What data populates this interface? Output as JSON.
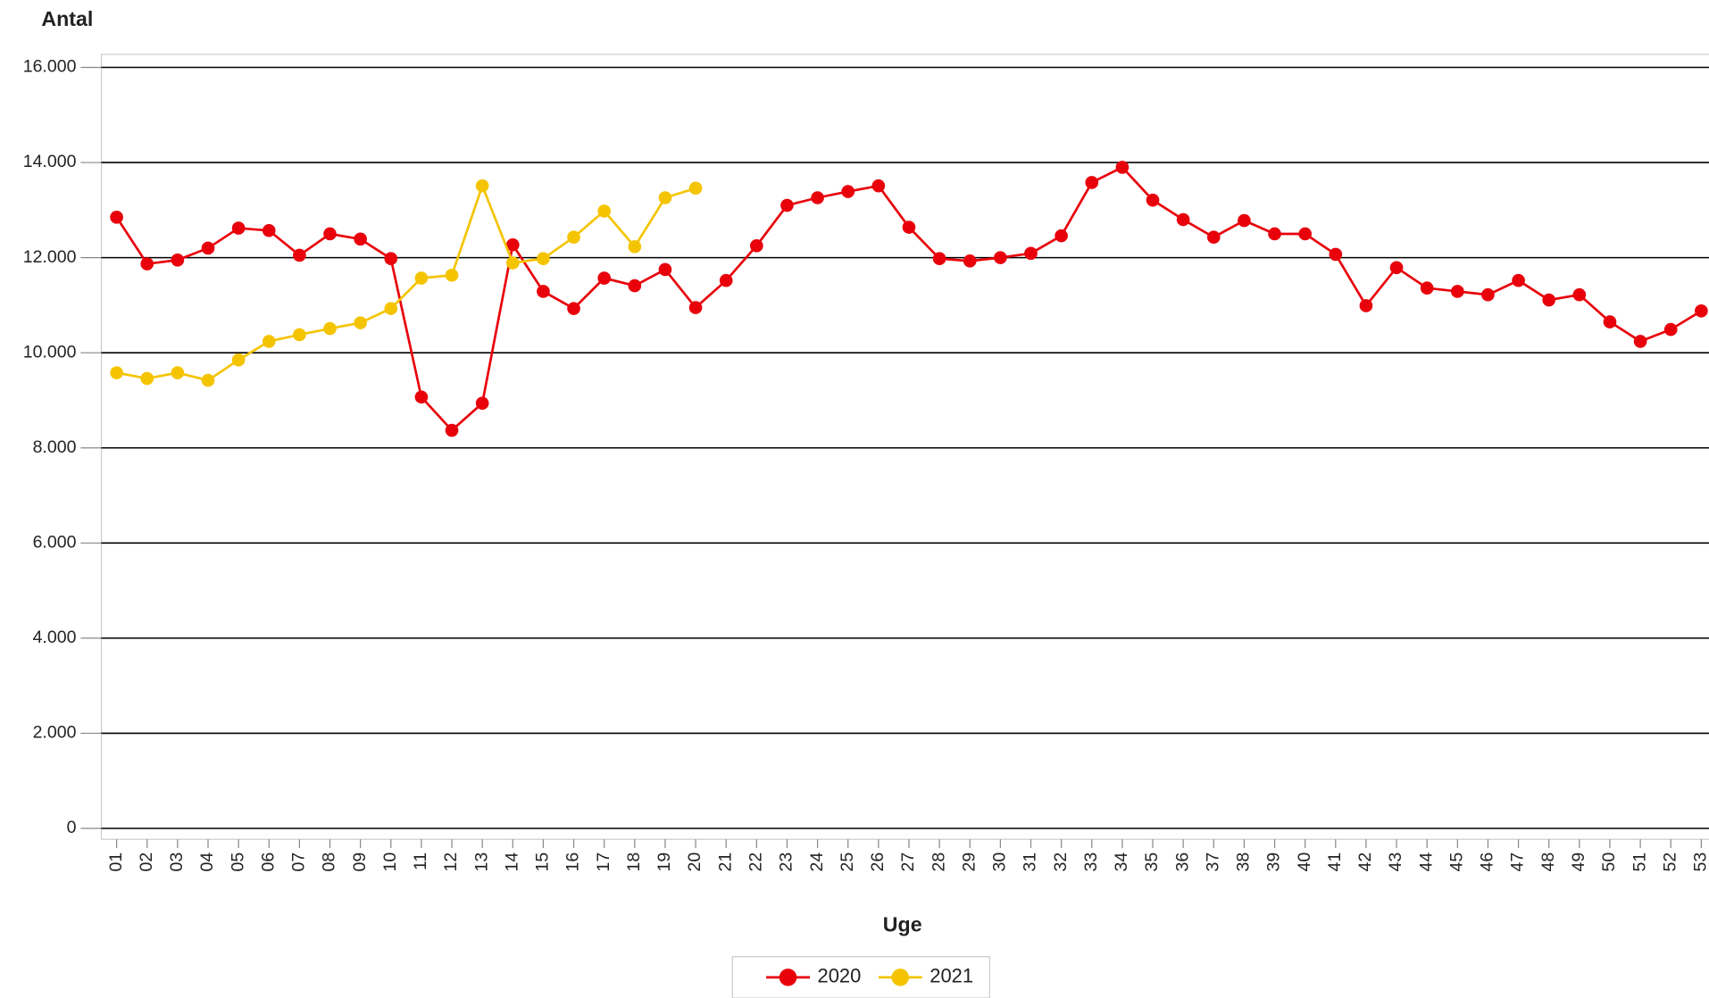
{
  "chart_data": {
    "type": "line",
    "y_label": "Antal",
    "x_label": "Uge",
    "categories": [
      "01",
      "02",
      "03",
      "04",
      "05",
      "06",
      "07",
      "08",
      "09",
      "10",
      "11",
      "12",
      "13",
      "14",
      "15",
      "16",
      "17",
      "18",
      "19",
      "20",
      "21",
      "22",
      "23",
      "24",
      "25",
      "26",
      "27",
      "28",
      "29",
      "30",
      "31",
      "32",
      "33",
      "34",
      "35",
      "36",
      "37",
      "38",
      "39",
      "40",
      "41",
      "42",
      "43",
      "44",
      "45",
      "46",
      "47",
      "48",
      "49",
      "50",
      "51",
      "52",
      "53"
    ],
    "series": [
      {
        "name": "2020",
        "color": "#e8000b",
        "values": [
          12850,
          11870,
          11950,
          12200,
          12620,
          12570,
          12050,
          12500,
          12390,
          11980,
          9070,
          8370,
          8940,
          12270,
          11290,
          10930,
          11570,
          11410,
          11750,
          10950,
          11520,
          12250,
          13100,
          13260,
          13390,
          13510,
          12640,
          11980,
          11930,
          12000,
          12090,
          12460,
          13580,
          13900,
          13210,
          12800,
          12430,
          12780,
          12500,
          12500,
          12070,
          10990,
          11790,
          11360,
          11290,
          11220,
          11520,
          11110,
          11220,
          10650,
          10240,
          10490,
          10880
        ]
      },
      {
        "name": "2021",
        "color": "#f5c400",
        "values": [
          9580,
          9460,
          9580,
          9420,
          9850,
          10240,
          10380,
          10510,
          10630,
          10930,
          11570,
          11630,
          13510,
          11890,
          11980,
          12430,
          12980,
          12230,
          13260,
          13460,
          null,
          null,
          null,
          null,
          null,
          null,
          null,
          null,
          null,
          null,
          null,
          null,
          null,
          null,
          null,
          null,
          null,
          null,
          null,
          null,
          null,
          null,
          null,
          null,
          null,
          null,
          null,
          null,
          null,
          null,
          null,
          null,
          null
        ]
      }
    ],
    "ylim": [
      0,
      16000
    ],
    "yticks": [
      {
        "value": 0,
        "label": "0"
      },
      {
        "value": 2000,
        "label": "2.000"
      },
      {
        "value": 4000,
        "label": "4.000"
      },
      {
        "value": 6000,
        "label": "6.000"
      },
      {
        "value": 8000,
        "label": "8.000"
      },
      {
        "value": 10000,
        "label": "10.000"
      },
      {
        "value": 12000,
        "label": "12.000"
      },
      {
        "value": 14000,
        "label": "14.000"
      },
      {
        "value": 16000,
        "label": "16.000"
      }
    ],
    "grid": true,
    "legend": "bottom"
  }
}
